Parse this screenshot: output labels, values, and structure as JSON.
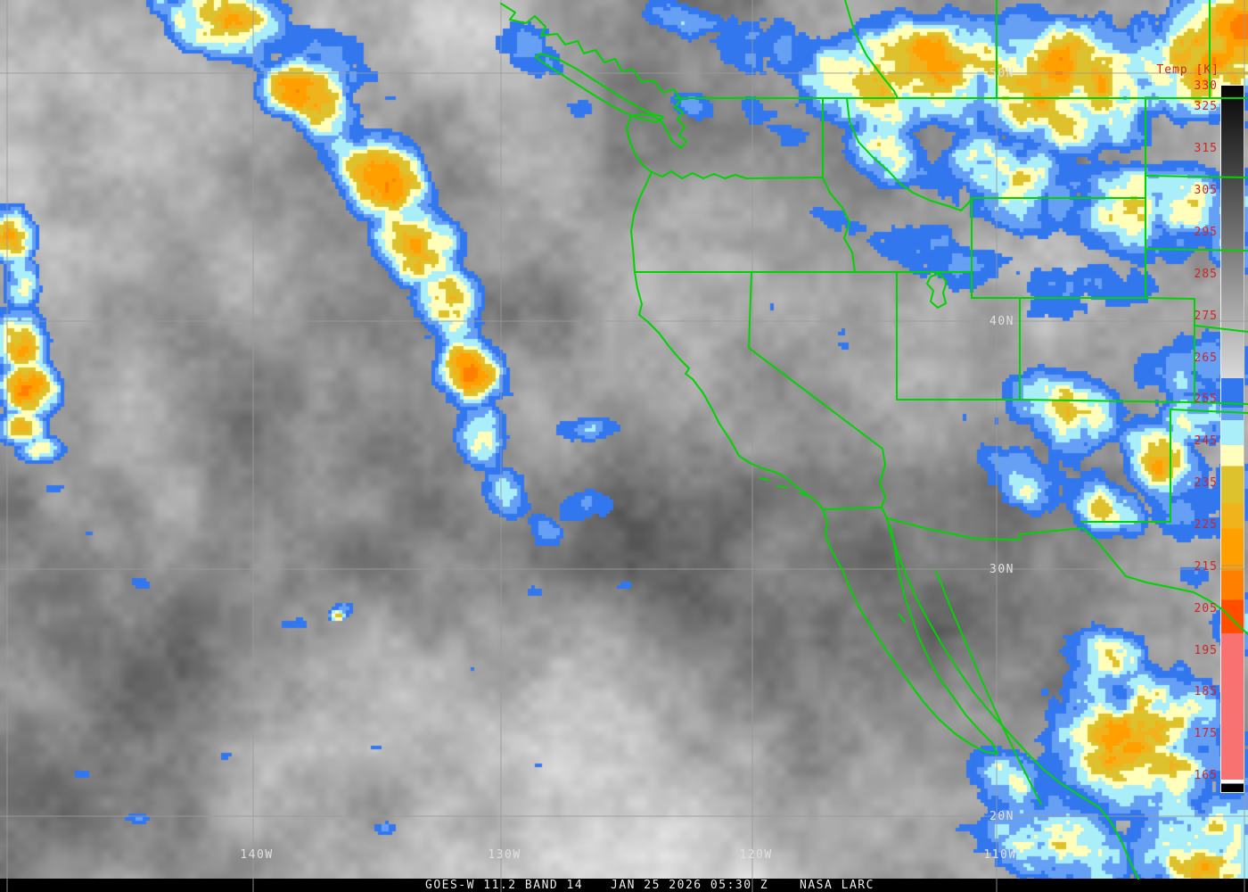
{
  "image_title": "GOES-West infrared satellite image, western United States and eastern Pacific",
  "colorbar": {
    "title": "Temp [K]",
    "tick_color": "#d02525",
    "ticks": [
      "330",
      "325",
      "315",
      "305",
      "295",
      "285",
      "275",
      "265",
      "255",
      "245",
      "235",
      "225",
      "215",
      "205",
      "195",
      "185",
      "175",
      "165"
    ],
    "scale": [
      {
        "from": 330,
        "to": 260,
        "type": "gradient",
        "colors": [
          "#050505",
          "#d9d9d9"
        ]
      },
      {
        "from": 260,
        "to": 253,
        "color": "#3377ee"
      },
      {
        "from": 253,
        "to": 250,
        "color": "#66a0f5"
      },
      {
        "from": 250,
        "to": 244,
        "color": "#aaeefa"
      },
      {
        "from": 244,
        "to": 239,
        "color": "#ffffbb"
      },
      {
        "from": 239,
        "to": 230,
        "color": "#ddc22e"
      },
      {
        "from": 230,
        "to": 224,
        "color": "#f0b31c"
      },
      {
        "from": 224,
        "to": 214,
        "color": "#ffa000"
      },
      {
        "from": 214,
        "to": 207,
        "color": "#ff8000"
      },
      {
        "from": 207,
        "to": 199,
        "color": "#ff4e00"
      },
      {
        "from": 199,
        "to": 164,
        "color": "#f87272"
      },
      {
        "from": 164,
        "to": 163,
        "color": "#ffffff"
      },
      {
        "from": 163,
        "to": 161,
        "color": "#000000"
      }
    ]
  },
  "grid": {
    "latitude_labels": [
      "50N",
      "40N",
      "30N",
      "20N"
    ],
    "longitude_labels": [
      "140W",
      "130W",
      "120W",
      "110W"
    ],
    "gridline_color": "#9a9a9a",
    "label_color": "#e0e0e0"
  },
  "map": {
    "border_color": "#00d400"
  },
  "footer": {
    "satellite": "GOES-W 11.2 BAND 14",
    "timestamp": "JAN 25 2026 05:30 Z",
    "credit": "NASA LARC",
    "text_color": "#ededed",
    "background": "#000000"
  }
}
